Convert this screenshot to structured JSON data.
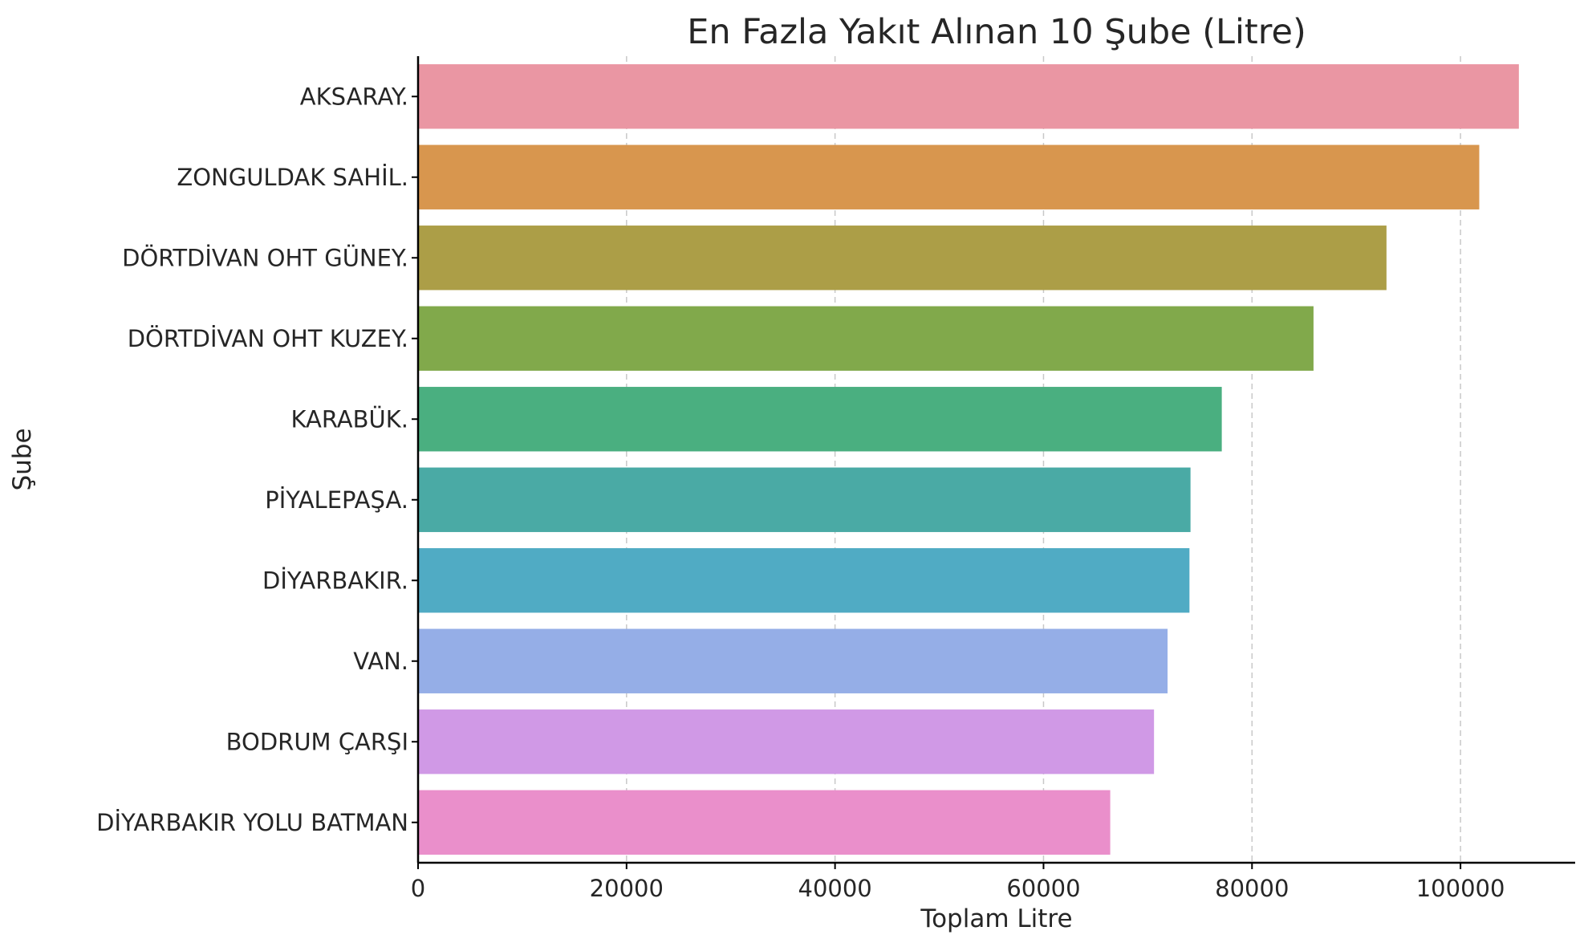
{
  "chart_data": {
    "type": "bar",
    "orientation": "horizontal",
    "title": "En Fazla Yakıt Alınan 10 Şube (Litre)",
    "xlabel": "Toplam Litre",
    "ylabel": "Şube",
    "xlim": [
      0,
      111000
    ],
    "xticks": [
      "0",
      "20000",
      "40000",
      "60000",
      "80000",
      "100000"
    ],
    "grid": "vertical dashed",
    "categories": [
      "AKSARAY.",
      "ZONGULDAK SAHİL.",
      "DÖRTDİVAN OHT GÜNEY.",
      "DÖRTDİVAN OHT KUZEY.",
      "KARABÜK.",
      "PİYALEPAŞA.",
      "DİYARBAKIR.",
      "VAN.",
      "BODRUM ÇARŞI",
      "DİYARBAKIR YOLU BATMAN"
    ],
    "values": [
      105600,
      101800,
      92900,
      85900,
      77100,
      74100,
      74000,
      71900,
      70600,
      66400
    ],
    "colors": [
      "#ea96a3",
      "#d8964e",
      "#ac9e47",
      "#81a94b",
      "#4aaf80",
      "#4aaaa5",
      "#50abc4",
      "#95aee7",
      "#d099e6",
      "#ea8fcb"
    ]
  }
}
